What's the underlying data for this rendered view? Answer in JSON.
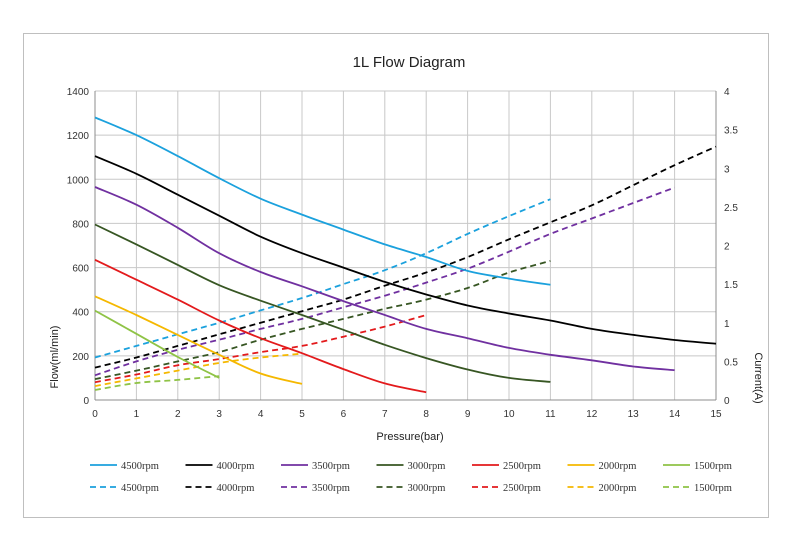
{
  "chart_data": {
    "type": "line",
    "title": "1L Flow Diagram",
    "xlabel": "Pressure(bar)",
    "ylabel": "Flow(ml/min)",
    "y2label": "Current(A)",
    "xlim": [
      0,
      15
    ],
    "ylim": [
      0,
      1400
    ],
    "y2lim": [
      0,
      4
    ],
    "x_ticks": [
      "0",
      "1",
      "2",
      "3",
      "4",
      "5",
      "6",
      "7",
      "8",
      "9",
      "10",
      "11",
      "12",
      "13",
      "14",
      "15"
    ],
    "y_ticks": [
      "0",
      "200",
      "400",
      "600",
      "800",
      "1000",
      "1200",
      "1400"
    ],
    "y2_ticks": [
      "0",
      "0.5",
      "1",
      "1.5",
      "2",
      "2.5",
      "3",
      "3.5",
      "4"
    ],
    "grid": true,
    "legend_position": "bottom",
    "flow_series": [
      {
        "name": "4500rpm",
        "color": "#1ba1dd",
        "x": [
          0,
          1,
          2,
          3,
          4,
          5,
          6,
          7,
          8,
          9,
          10,
          11
        ],
        "y": [
          1280,
          1200,
          1105,
          1005,
          912,
          840,
          772,
          705,
          648,
          585,
          550,
          522
        ]
      },
      {
        "name": "4000rpm",
        "color": "#000000",
        "x": [
          0,
          1,
          2,
          3,
          4,
          5,
          6,
          7,
          8,
          9,
          10,
          11,
          12,
          13,
          14,
          15
        ],
        "y": [
          1105,
          1025,
          930,
          835,
          740,
          665,
          600,
          535,
          478,
          428,
          392,
          360,
          322,
          295,
          272,
          255
        ]
      },
      {
        "name": "3500rpm",
        "color": "#7030a0",
        "x": [
          0,
          1,
          2,
          3,
          4,
          5,
          6,
          7,
          8,
          9,
          10,
          11,
          12,
          13,
          14
        ],
        "y": [
          965,
          885,
          780,
          665,
          580,
          515,
          448,
          385,
          322,
          280,
          236,
          205,
          180,
          152,
          135
        ]
      },
      {
        "name": "3000rpm",
        "color": "#375623",
        "x": [
          0,
          1,
          2,
          3,
          4,
          5,
          6,
          7,
          8,
          9,
          10,
          11
        ],
        "y": [
          795,
          705,
          612,
          520,
          450,
          385,
          318,
          250,
          190,
          138,
          100,
          82
        ]
      },
      {
        "name": "2500rpm",
        "color": "#e31a1c",
        "x": [
          0,
          1,
          2,
          3,
          4,
          5,
          6,
          7,
          8
        ],
        "y": [
          635,
          545,
          455,
          360,
          280,
          212,
          140,
          75,
          35
        ]
      },
      {
        "name": "2000rpm",
        "color": "#f5b800",
        "x": [
          0,
          1,
          2,
          3,
          4,
          5
        ],
        "y": [
          470,
          385,
          295,
          205,
          120,
          73
        ]
      },
      {
        "name": "1500rpm",
        "color": "#8fc346",
        "x": [
          0,
          1,
          2,
          3
        ],
        "y": [
          405,
          300,
          195,
          100
        ]
      }
    ],
    "current_series": [
      {
        "name": "4500rpm",
        "color": "#1ba1dd",
        "x": [
          0,
          1,
          2,
          3,
          4,
          5,
          6,
          7,
          8,
          9,
          10,
          11
        ],
        "y": [
          0.55,
          0.7,
          0.85,
          1.0,
          1.16,
          1.32,
          1.5,
          1.68,
          1.9,
          2.15,
          2.38,
          2.6
        ]
      },
      {
        "name": "4000rpm",
        "color": "#000000",
        "x": [
          0,
          1,
          2,
          3,
          4,
          5,
          6,
          7,
          8,
          9,
          10,
          11,
          12,
          13,
          14,
          15
        ],
        "y": [
          0.42,
          0.55,
          0.7,
          0.85,
          1.0,
          1.15,
          1.3,
          1.48,
          1.65,
          1.85,
          2.08,
          2.3,
          2.52,
          2.78,
          3.04,
          3.28
        ]
      },
      {
        "name": "3500rpm",
        "color": "#7030a0",
        "x": [
          0,
          1,
          2,
          3,
          4,
          5,
          6,
          7,
          8,
          9,
          10,
          11,
          12,
          13,
          14
        ],
        "y": [
          0.32,
          0.5,
          0.65,
          0.78,
          0.92,
          1.05,
          1.2,
          1.35,
          1.52,
          1.7,
          1.92,
          2.15,
          2.35,
          2.55,
          2.75
        ]
      },
      {
        "name": "3000rpm",
        "color": "#375623",
        "x": [
          0,
          1,
          2,
          3,
          4,
          5,
          6,
          7,
          8,
          9,
          10,
          11
        ],
        "y": [
          0.27,
          0.38,
          0.5,
          0.62,
          0.78,
          0.92,
          1.05,
          1.18,
          1.3,
          1.45,
          1.65,
          1.8
        ]
      },
      {
        "name": "2500rpm",
        "color": "#e31a1c",
        "x": [
          0,
          1,
          2,
          3,
          4,
          5,
          6,
          7,
          8
        ],
        "y": [
          0.23,
          0.33,
          0.45,
          0.53,
          0.62,
          0.7,
          0.82,
          0.95,
          1.1
        ]
      },
      {
        "name": "2000rpm",
        "color": "#f5b800",
        "x": [
          0,
          1,
          2,
          3,
          4,
          5
        ],
        "y": [
          0.18,
          0.28,
          0.38,
          0.48,
          0.55,
          0.6
        ]
      },
      {
        "name": "1500rpm",
        "color": "#8fc346",
        "x": [
          0,
          1,
          2,
          3
        ],
        "y": [
          0.13,
          0.22,
          0.26,
          0.31
        ]
      }
    ]
  }
}
